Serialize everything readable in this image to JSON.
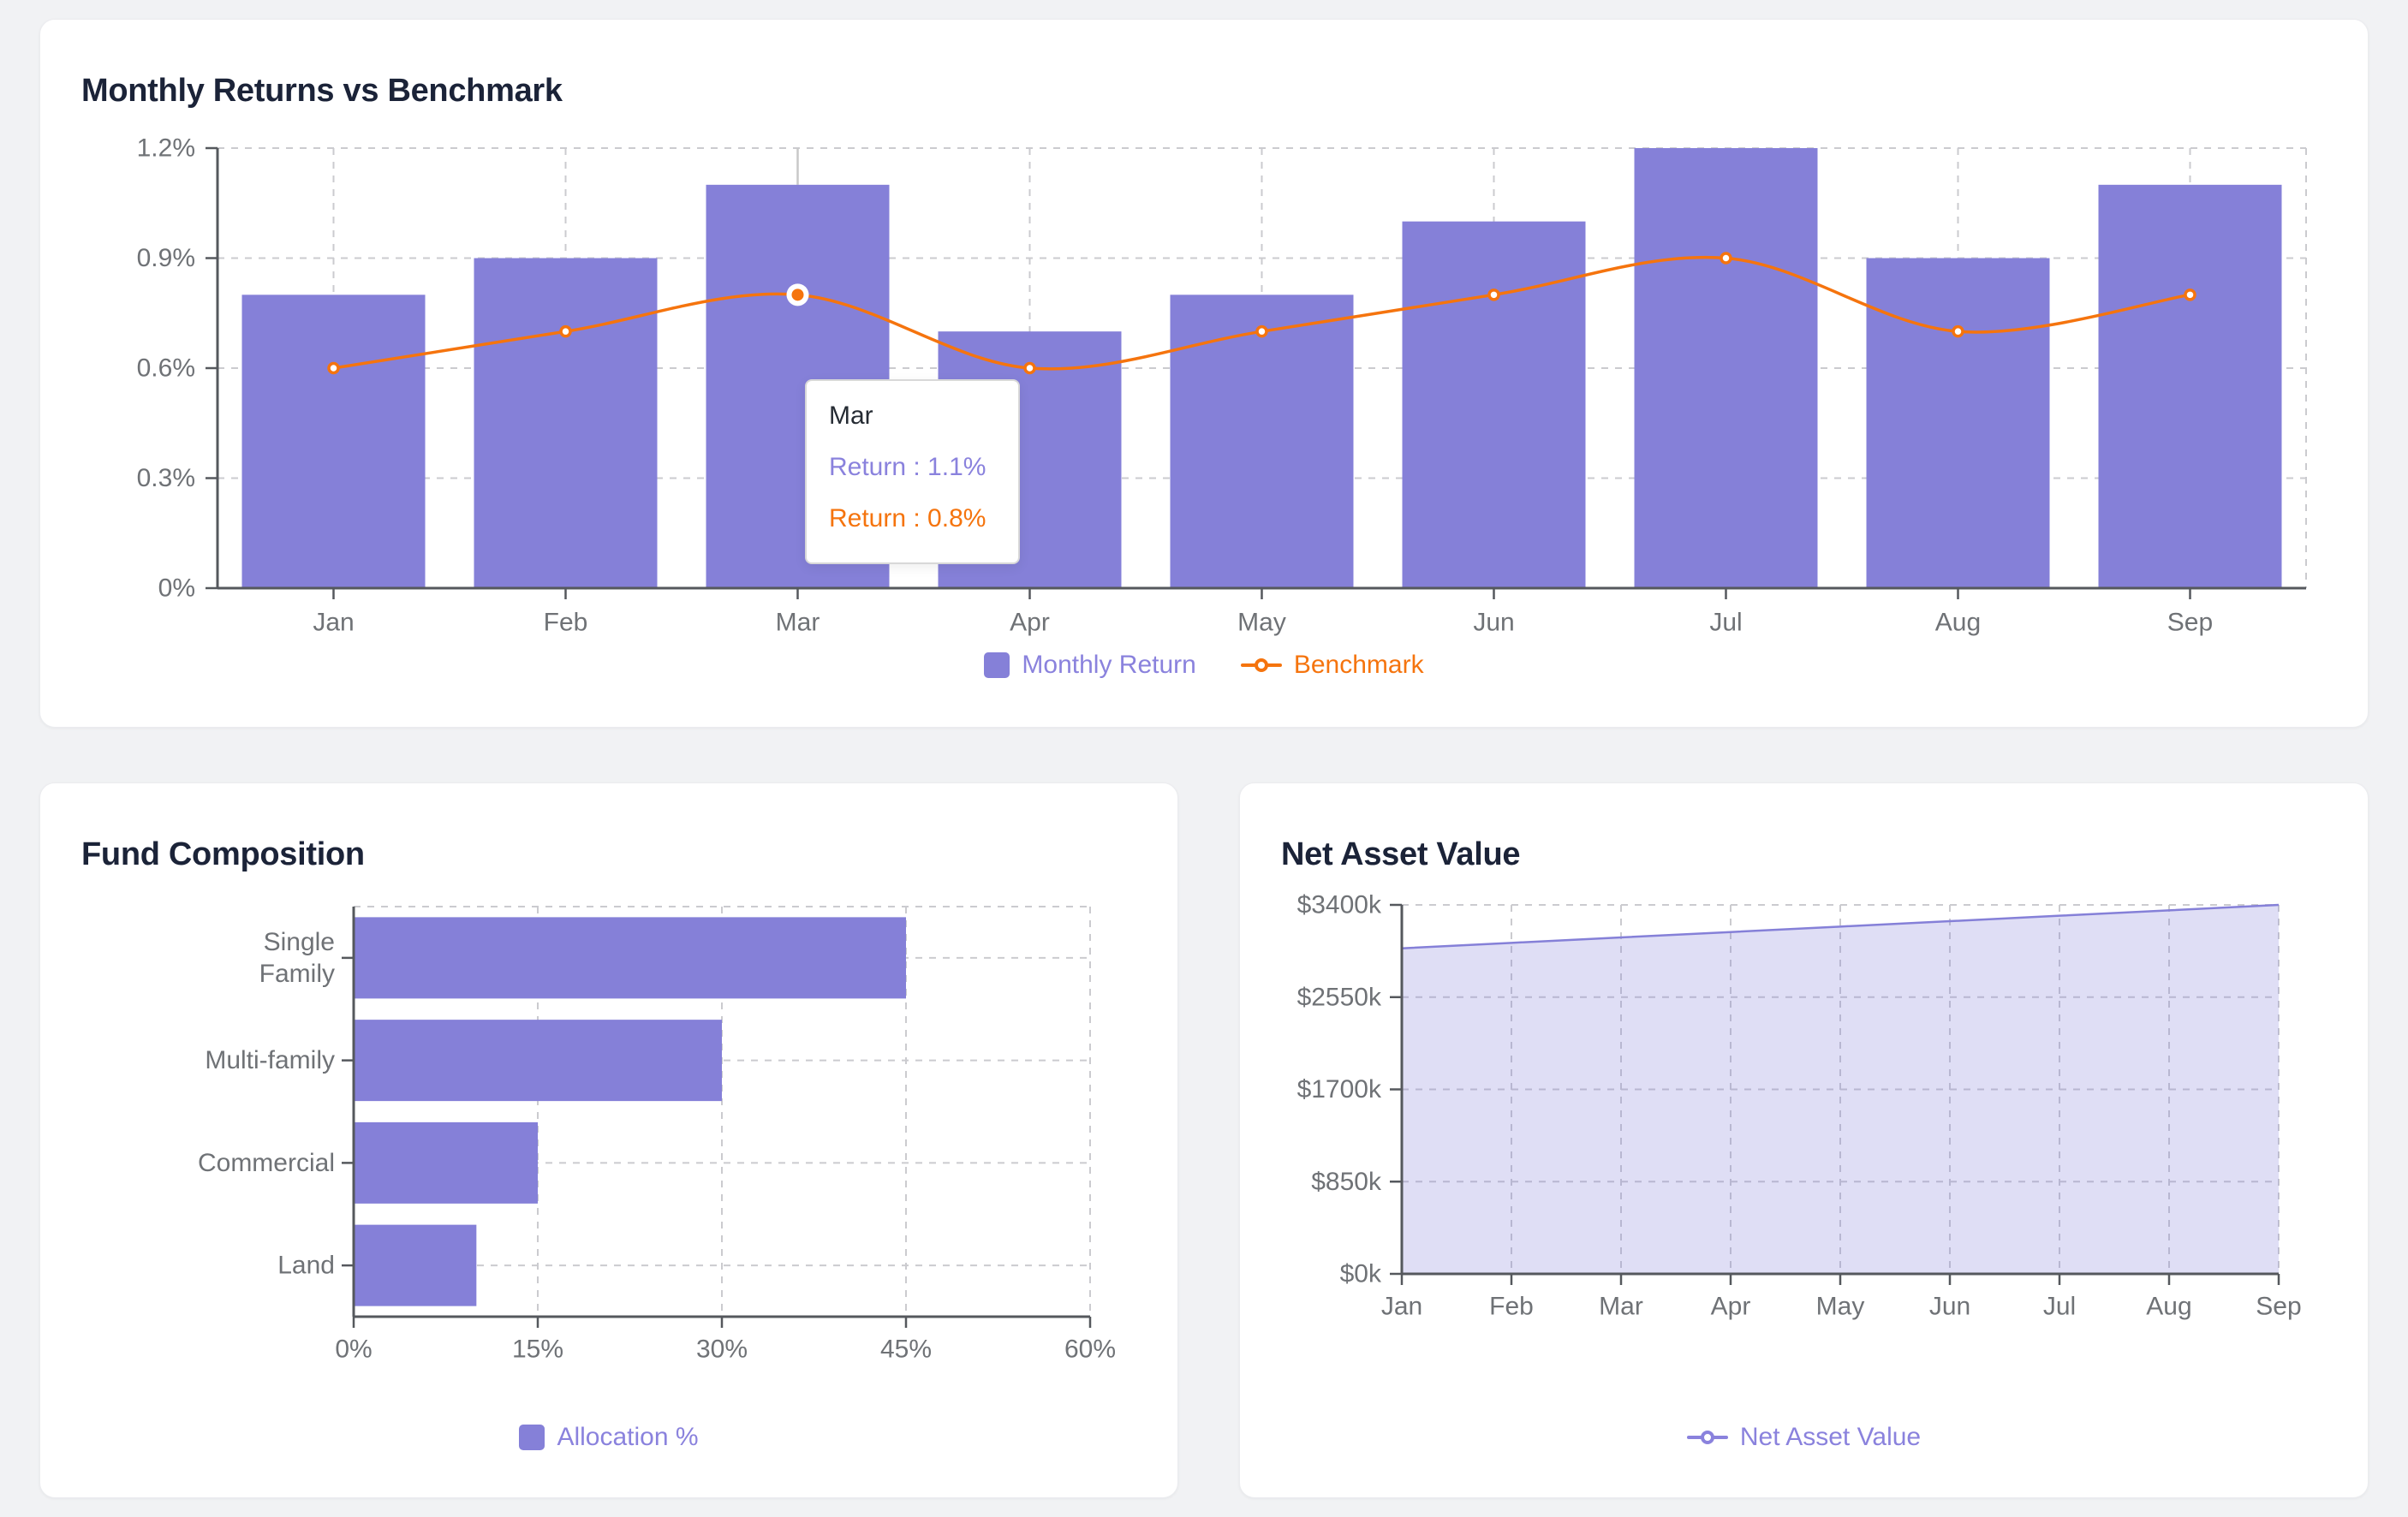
{
  "page": {
    "background": "#F1F2F4"
  },
  "colors": {
    "purple": "#8580D8",
    "purple_text": "#8A82DD",
    "orange": "#F5740E",
    "area_fill": "rgba(133,128,216,0.26)",
    "title_text": "#1B2338",
    "axis_text": "#6F7276",
    "axis_line": "#55585D",
    "grid_line": "#CBCBCF",
    "axis_pointer": "#C9C9C9",
    "tooltip_title_text": "#252B33"
  },
  "chart_data": [
    {
      "type": "bar",
      "title": "Monthly Returns vs Benchmark",
      "categories": [
        "Jan",
        "Feb",
        "Mar",
        "Apr",
        "May",
        "Jun",
        "Jul",
        "Aug",
        "Sep"
      ],
      "series": [
        {
          "name": "Monthly Return",
          "type": "bar",
          "values": [
            0.8,
            0.9,
            1.1,
            0.7,
            0.8,
            1.0,
            1.2,
            0.9,
            1.1
          ]
        },
        {
          "name": "Benchmark",
          "type": "line",
          "values": [
            0.6,
            0.7,
            0.8,
            0.6,
            0.7,
            0.8,
            0.9,
            0.7,
            0.8
          ]
        }
      ],
      "ylim": [
        0,
        1.2
      ],
      "ytick_labels": [
        "0%",
        "0.3%",
        "0.6%",
        "0.9%",
        "1.2%"
      ],
      "grid": "dashed",
      "legend_position": "bottom",
      "tooltip": {
        "title": "Mar",
        "lines": [
          "Return : 1.1%",
          "Return : 0.8%"
        ],
        "highlight_index": 2
      }
    },
    {
      "type": "bar",
      "orientation": "horizontal",
      "title": "Fund Composition",
      "categories": [
        "Single Family",
        "Multi-family",
        "Commercial",
        "Land"
      ],
      "values": [
        45,
        30,
        15,
        10
      ],
      "xlim": [
        0,
        60
      ],
      "xtick_labels": [
        "0%",
        "15%",
        "30%",
        "45%",
        "60%"
      ],
      "grid": "dashed",
      "legend": "Allocation %",
      "legend_position": "bottom"
    },
    {
      "type": "area",
      "title": "Net Asset Value",
      "categories": [
        "Jan",
        "Feb",
        "Mar",
        "Apr",
        "May",
        "Jun",
        "Jul",
        "Aug",
        "Sep"
      ],
      "values": [
        3000,
        3050,
        3100,
        3150,
        3200,
        3250,
        3300,
        3350,
        3400
      ],
      "unit": "$k",
      "ylim": [
        0,
        3400
      ],
      "ytick_labels": [
        "$0k",
        "$850k",
        "$1700k",
        "$2550k",
        "$3400k"
      ],
      "grid": "dashed",
      "legend": "Net Asset Value",
      "legend_position": "bottom"
    }
  ]
}
